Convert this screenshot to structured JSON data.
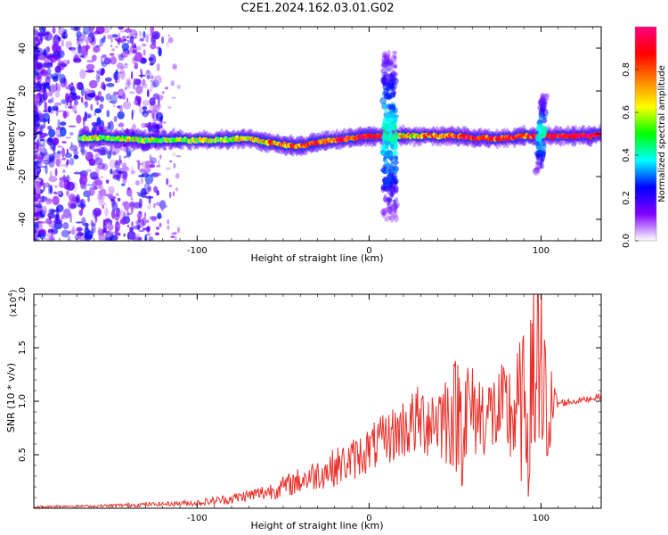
{
  "title": "C2E1.2024.162.03.01.G02",
  "chart_data": [
    {
      "type": "heatmap",
      "name": "spectrogram",
      "xlabel": "Height of straight line (km)",
      "ylabel": "Frequency (Hz)",
      "xlim": [
        -195,
        135
      ],
      "ylim": [
        -50,
        50
      ],
      "x_ticks": [
        -100,
        0,
        100
      ],
      "y_ticks": [
        -40,
        -20,
        0,
        20,
        40
      ],
      "colorbar": {
        "label": "Normalized spectral amplitude",
        "range": [
          0,
          1
        ],
        "ticks": [
          "0.0",
          "0.2",
          "0.4",
          "0.6",
          "0.8"
        ],
        "colors": [
          "#ffffff",
          "#8000ff",
          "#0000ff",
          "#00ffff",
          "#00ff00",
          "#ffff00",
          "#ff8000",
          "#ff0000",
          "#ff0080"
        ]
      },
      "ridge": {
        "x": [
          -165,
          -150,
          -130,
          -110,
          -90,
          -70,
          -60,
          -50,
          -40,
          -30,
          -20,
          -10,
          0,
          10,
          20,
          30,
          40,
          50,
          60,
          70,
          80,
          90,
          100,
          110,
          120,
          130,
          135
        ],
        "freq": [
          -2,
          -2,
          -3,
          -3,
          -3,
          -2,
          -4,
          -5,
          -6,
          -4,
          -3,
          -2,
          -1,
          -1,
          -1,
          -1,
          -1,
          -1,
          -2,
          -2,
          -2,
          -1,
          -1,
          -1,
          -1,
          -1,
          0
        ],
        "amplitude": [
          0.55,
          0.6,
          0.6,
          0.55,
          0.55,
          0.6,
          0.7,
          0.75,
          0.8,
          0.8,
          0.85,
          0.9,
          0.95,
          0.9,
          0.6,
          0.7,
          0.8,
          0.85,
          0.85,
          0.85,
          0.85,
          0.8,
          0.95,
          0.95,
          0.98,
          0.98,
          0.9
        ]
      },
      "broadband_events": [
        {
          "x": 12,
          "freq_range": [
            -40,
            38
          ]
        },
        {
          "x": 100,
          "freq_range": [
            -18,
            18
          ]
        }
      ]
    },
    {
      "type": "line",
      "name": "snr",
      "xlabel": "Height of straight line (km)",
      "ylabel": "SNR (10 * v/v)",
      "y_multiplier_label": "(x10",
      "y_multiplier_exp": "4",
      "y_multiplier_close": ")",
      "xlim": [
        -195,
        135
      ],
      "ylim": [
        0,
        2.0
      ],
      "x_ticks": [
        -100,
        0,
        100
      ],
      "y_ticks": [
        0.5,
        1.0,
        1.5,
        2.0
      ],
      "series": [
        {
          "color": "#e8302a",
          "x": [
            -195,
            -180,
            -160,
            -140,
            -120,
            -100,
            -90,
            -80,
            -70,
            -60,
            -50,
            -40,
            -30,
            -20,
            -10,
            0,
            10,
            20,
            30,
            40,
            50,
            55,
            60,
            70,
            80,
            90,
            95,
            100,
            105,
            110,
            120,
            130,
            135
          ],
          "y": [
            0.01,
            0.02,
            0.02,
            0.03,
            0.04,
            0.05,
            0.07,
            0.09,
            0.12,
            0.15,
            0.2,
            0.26,
            0.32,
            0.38,
            0.45,
            0.55,
            0.65,
            0.75,
            0.82,
            0.85,
            0.88,
            0.9,
            0.9,
            0.88,
            0.88,
            0.9,
            0.92,
            0.95,
            0.95,
            0.98,
            1.0,
            1.03,
            1.05
          ],
          "spread": [
            0.01,
            0.01,
            0.01,
            0.02,
            0.02,
            0.03,
            0.04,
            0.05,
            0.06,
            0.08,
            0.1,
            0.13,
            0.15,
            0.18,
            0.2,
            0.22,
            0.25,
            0.3,
            0.35,
            0.4,
            0.55,
            0.75,
            0.45,
            0.4,
            0.5,
            0.75,
            0.9,
            0.9,
            0.45,
            0.04,
            0.03,
            0.03,
            0.03
          ]
        }
      ]
    }
  ]
}
